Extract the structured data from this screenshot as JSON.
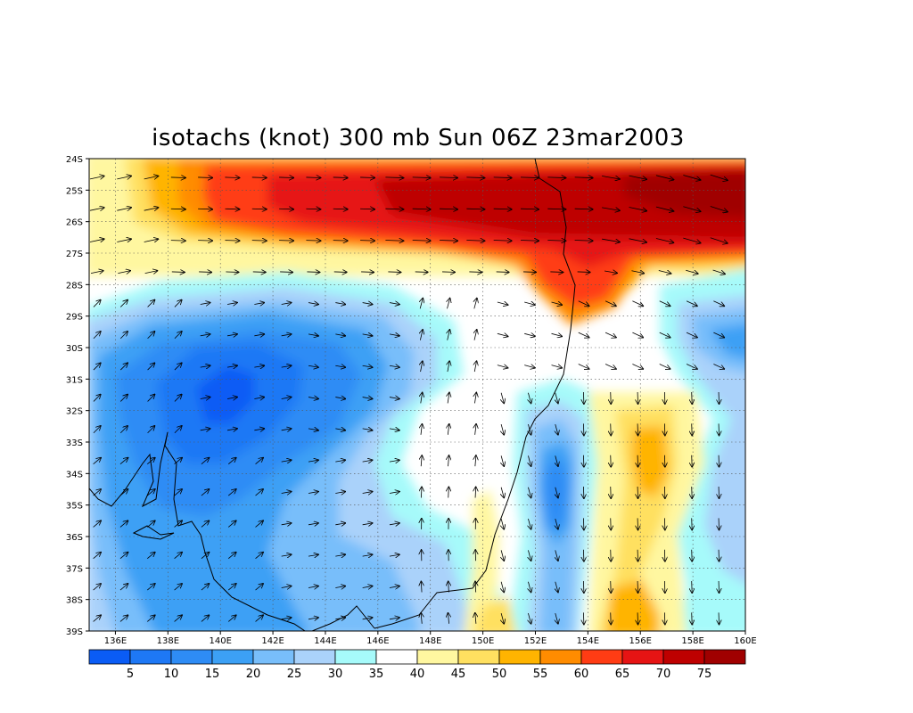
{
  "title": "isotachs (knot) 300 mb Sun 06Z 23mar2003",
  "map": {
    "lat_ticks": [
      "24S",
      "25S",
      "26S",
      "27S",
      "28S",
      "29S",
      "30S",
      "31S",
      "32S",
      "33S",
      "34S",
      "35S",
      "36S",
      "37S",
      "38S",
      "39S"
    ],
    "lon_ticks": [
      "136E",
      "138E",
      "140E",
      "142E",
      "144E",
      "146E",
      "148E",
      "150E",
      "152E",
      "154E",
      "156E",
      "158E",
      "160E"
    ],
    "lon_range": [
      135,
      160
    ],
    "lat_range": [
      -39,
      -24
    ],
    "grid": "dotted"
  },
  "colorbar": {
    "labels": [
      "5",
      "10",
      "15",
      "20",
      "25",
      "30",
      "35",
      "40",
      "45",
      "50",
      "55",
      "60",
      "65",
      "70",
      "75"
    ],
    "colors": [
      "#0a5cf5",
      "#1e78f5",
      "#2e8cf5",
      "#3ca0f5",
      "#78befa",
      "#aad2fa",
      "#a6fafa",
      "#ffffff",
      "#fff7a0",
      "#ffe060",
      "#ffb400",
      "#ff8c00",
      "#ff3c14",
      "#e61414",
      "#be0000",
      "#a00000"
    ]
  }
}
